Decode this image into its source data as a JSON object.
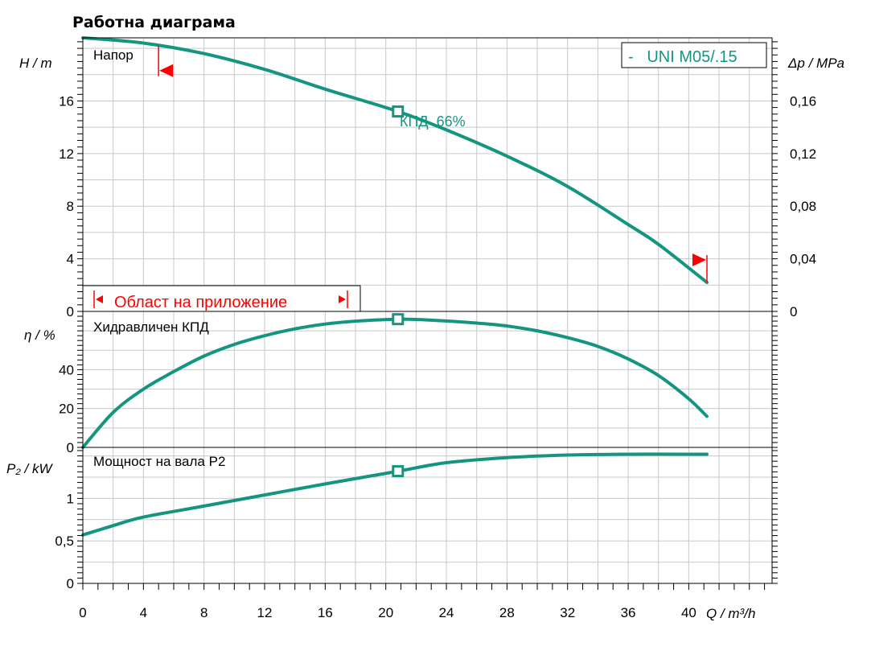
{
  "page": {
    "title": "Работна диаграма"
  },
  "colors": {
    "curve": "#14957f",
    "range": "#ff0000",
    "grid": "#c8c8c8",
    "axis": "#000000"
  },
  "chart_data": {
    "type": "line",
    "x_axis": {
      "label": "Q  / m³/h",
      "range": [
        0,
        45.5
      ],
      "ticks": [
        0,
        4,
        8,
        12,
        16,
        20,
        24,
        28,
        32,
        36,
        40
      ]
    },
    "legend": {
      "text": "-   UNI M05/.15",
      "placement": "top-right"
    },
    "operating_point": {
      "q": 20.8,
      "label": "КПД  66%"
    },
    "application_range": {
      "label": "Област на приложение",
      "q_min": 5,
      "q_max": 41.2
    },
    "panels": [
      {
        "name": "head",
        "title": "Напор",
        "ylabel": "H  / m",
        "ylim": [
          0,
          20.8
        ],
        "ticks": [
          0,
          4,
          8,
          12,
          16
        ],
        "secondary_axis": {
          "label": "Δp  / MPa",
          "range": [
            0,
            0.208
          ],
          "ticks": [
            "0",
            "0,04",
            "0,08",
            "0,12",
            "0,16"
          ]
        },
        "series": [
          {
            "x": [
              0,
              4,
              8,
              12,
              16,
              20.8,
              24,
              28,
              32,
              36,
              38,
              41.2
            ],
            "y": [
              20.8,
              20.4,
              19.6,
              18.4,
              16.9,
              15.2,
              13.8,
              11.8,
              9.5,
              6.6,
              5.1,
              2.2
            ]
          }
        ],
        "operating_value": 15.2
      },
      {
        "name": "efficiency",
        "title": "Хидравличен КПД",
        "ylabel": "η  / %",
        "ylim": [
          0,
          70
        ],
        "ticks": [
          0,
          20,
          40
        ],
        "series": [
          {
            "x": [
              0,
              2,
              4,
              6,
              8,
              10,
              12,
              14,
              16,
              18,
              20.8,
              23,
              26,
              28,
              30,
              32,
              34,
              36,
              38,
              40,
              41.2
            ],
            "y": [
              0,
              18,
              30,
              39,
              47,
              53,
              57.5,
              61,
              63.5,
              65,
              66,
              65.5,
              64,
              62.5,
              60,
              56.5,
              52,
              45.5,
              37,
              25,
              16
            ]
          }
        ],
        "operating_value": 66
      },
      {
        "name": "power",
        "title": "Мощност на вала P2",
        "ylabel": "P₂  / kW",
        "ylim": [
          0,
          1.6
        ],
        "ticks": [
          "0",
          "0,5",
          "1"
        ],
        "tick_values": [
          0,
          0.5,
          1
        ],
        "series": [
          {
            "x": [
              0,
              2,
              4,
              8,
              12,
              16,
              20.8,
              24,
              28,
              32,
              36,
              40,
              41.2
            ],
            "y": [
              0.57,
              0.68,
              0.78,
              0.91,
              1.04,
              1.17,
              1.32,
              1.42,
              1.48,
              1.51,
              1.52,
              1.52,
              1.52
            ]
          }
        ],
        "operating_value": 1.32
      }
    ]
  }
}
